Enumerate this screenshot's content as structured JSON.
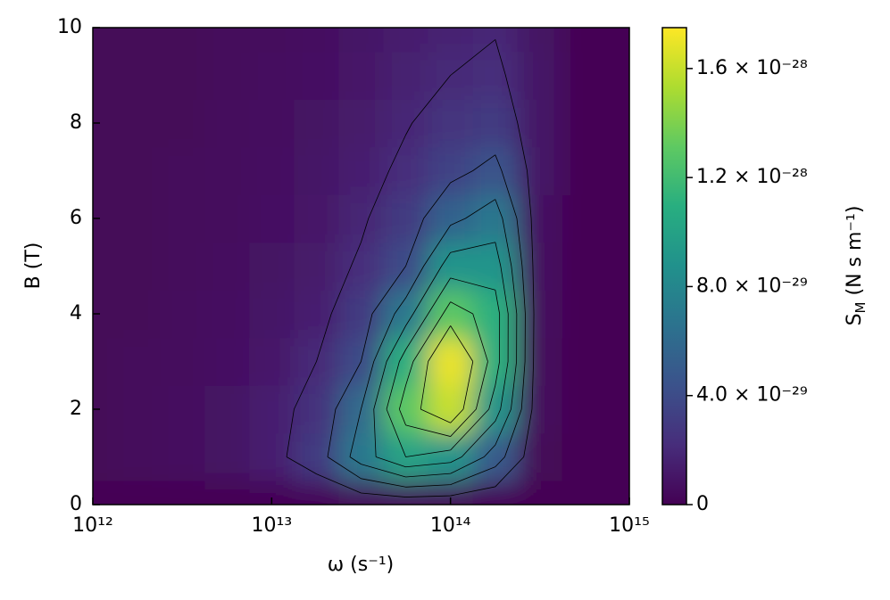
{
  "chart_data": {
    "type": "heatmap",
    "xlabel": "ω (s⁻¹)",
    "ylabel": "B (T)",
    "colorbar_label": {
      "main": "S",
      "sub": "M",
      "unit": " (N s m⁻¹)"
    },
    "colormap": "viridis",
    "xscale": "log",
    "xlim": [
      1000000000000.0,
      1000000000000000.0
    ],
    "ylim": [
      0,
      10
    ],
    "xticks": [
      {
        "value": 1000000000000.0,
        "label": "10¹²"
      },
      {
        "value": 10000000000000.0,
        "label": "10¹³"
      },
      {
        "value": 100000000000000.0,
        "label": "10¹⁴"
      },
      {
        "value": 1000000000000000.0,
        "label": "10¹⁵"
      }
    ],
    "yticks": [
      0,
      2,
      4,
      6,
      8,
      10
    ],
    "clim": [
      0,
      1.75e-28
    ],
    "cticks": [
      0,
      {
        "value": 4e-29,
        "label": "4.0 × 10⁻²⁹"
      },
      {
        "value": 8e-29,
        "label": "8.0 × 10⁻²⁹"
      },
      {
        "value": 1.2e-28,
        "label": "1.2 × 10⁻²⁸"
      },
      {
        "value": 1.6e-28,
        "label": "1.6 × 10⁻²⁸"
      }
    ],
    "contour_levels": [
      2e-29,
      4e-29,
      6e-29,
      8e-29,
      1e-28,
      1.2e-28,
      1.4e-28
    ],
    "contour_color": "#000000",
    "x": [
      1000000000000.0,
      1780000000000.0,
      3160000000000.0,
      5620000000000.0,
      10000000000000.0,
      17800000000000.0,
      31600000000000.0,
      56200000000000.0,
      100000000000000.0,
      178000000000000.0,
      316000000000000.0,
      562000000000000.0,
      1000000000000000.0
    ],
    "y": [
      0,
      1,
      2,
      3,
      4,
      5,
      6,
      7,
      8,
      9,
      10
    ],
    "z": [
      [
        0,
        0,
        0,
        0,
        1e-30,
        2e-30,
        4e-30,
        5e-30,
        4e-30,
        2e-30,
        0,
        0,
        0
      ],
      [
        3e-30,
        4e-30,
        6e-30,
        9e-30,
        1.5e-29,
        3e-29,
        7e-29,
        1e-28,
        9e-29,
        5e-29,
        3e-30,
        0,
        0
      ],
      [
        3e-30,
        4e-30,
        6e-30,
        9e-30,
        1.5e-29,
        2.5e-29,
        6e-29,
        1.3e-28,
        1.6e-28,
        9e-29,
        5e-30,
        0,
        0
      ],
      [
        3e-30,
        4e-30,
        5e-30,
        8e-30,
        1.2e-29,
        2e-29,
        4e-29,
        1.1e-28,
        1.7e-28,
        1.1e-28,
        5e-30,
        0,
        0
      ],
      [
        3e-30,
        3e-30,
        5e-30,
        7e-30,
        1e-29,
        1.5e-29,
        3e-29,
        7e-29,
        1.3e-28,
        1.1e-28,
        6e-30,
        0,
        0
      ],
      [
        3e-30,
        3e-30,
        4e-30,
        6e-30,
        9e-30,
        1.3e-29,
        2.2e-29,
        4e-29,
        9e-29,
        9e-29,
        7e-30,
        0,
        0
      ],
      [
        3e-30,
        3e-30,
        4e-30,
        5e-30,
        8e-30,
        1.1e-29,
        1.8e-29,
        3e-29,
        5.5e-29,
        7e-29,
        8e-30,
        0,
        0
      ],
      [
        3e-30,
        3e-30,
        4e-30,
        5e-30,
        7e-30,
        1e-29,
        1.5e-29,
        2.3e-29,
        3.5e-29,
        4.5e-29,
        1e-29,
        0,
        0
      ],
      [
        3e-30,
        3e-30,
        3e-30,
        5e-30,
        6e-30,
        9e-30,
        1.3e-29,
        1.9e-29,
        2.6e-29,
        3e-29,
        1e-29,
        0,
        0
      ],
      [
        3e-30,
        3e-30,
        3e-30,
        4e-30,
        6e-30,
        8e-30,
        1.1e-29,
        1.6e-29,
        2e-29,
        2.3e-29,
        1e-29,
        0,
        0
      ],
      [
        3e-30,
        3e-30,
        3e-30,
        4e-30,
        5e-30,
        7e-30,
        1e-29,
        1.4e-29,
        1.7e-29,
        1.9e-29,
        9e-30,
        0,
        0
      ]
    ]
  }
}
